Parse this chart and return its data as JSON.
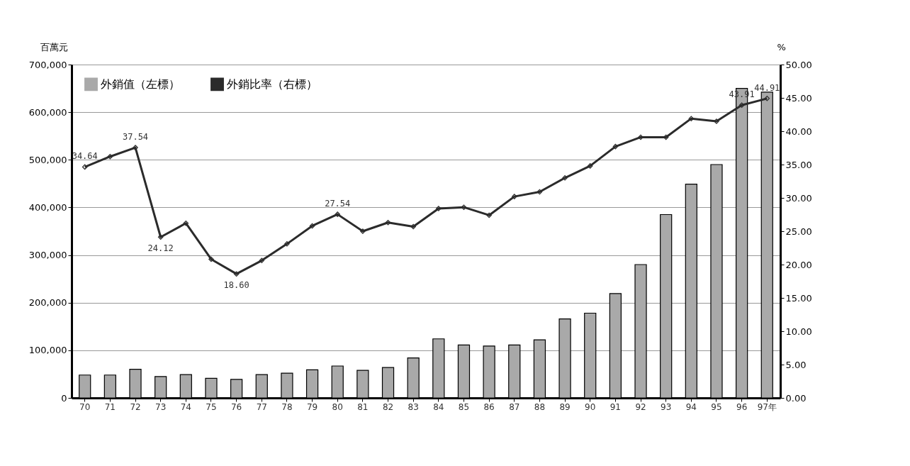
{
  "chart_data": {
    "type": "bar",
    "ylabel": "百萬元",
    "y2label": "%",
    "categories": [
      "70",
      "71",
      "72",
      "73",
      "74",
      "75",
      "76",
      "77",
      "78",
      "79",
      "80",
      "81",
      "82",
      "83",
      "84",
      "85",
      "86",
      "87",
      "88",
      "89",
      "90",
      "91",
      "92",
      "93",
      "94",
      "95",
      "96",
      "97年"
    ],
    "series": [
      {
        "name": "外銷值（左標）",
        "color": "#a9a9a9",
        "values": [
          48000,
          48000,
          60000,
          45000,
          49000,
          41000,
          39000,
          49000,
          52000,
          59000,
          67000,
          58000,
          64000,
          84000,
          124000,
          111000,
          109000,
          111000,
          122000,
          166000,
          178000,
          219000,
          280000,
          385000,
          449000,
          490000,
          650000,
          642000
        ]
      },
      {
        "name": "外銷比率（右標）",
        "type": "line",
        "axis": "y2",
        "color": "#2b2b2b",
        "marker": "diamond",
        "values": [
          34.64,
          36.2,
          37.54,
          24.12,
          26.2,
          20.8,
          18.6,
          20.6,
          23.1,
          25.8,
          27.54,
          25.0,
          26.3,
          25.7,
          28.4,
          28.6,
          27.4,
          30.2,
          30.9,
          33.0,
          34.8,
          37.7,
          39.1,
          39.1,
          41.9,
          41.5,
          43.91,
          44.91
        ],
        "value_labels": [
          "34.64",
          null,
          "37.54",
          "24.12",
          null,
          null,
          "18.60",
          null,
          null,
          null,
          "27.54",
          null,
          null,
          null,
          null,
          null,
          null,
          null,
          null,
          null,
          null,
          null,
          null,
          null,
          null,
          null,
          "43.91",
          "44.91"
        ]
      }
    ],
    "ylim": [
      0,
      700000
    ],
    "yticks": [
      0,
      {
        "value": 100000,
        "label": "100,000"
      },
      {
        "value": 200000,
        "label": "200,000"
      },
      {
        "value": 300000,
        "label": "300,000"
      },
      {
        "value": 400000,
        "label": "400,000"
      },
      {
        "value": 500000,
        "label": "500,000"
      },
      {
        "value": 600000,
        "label": "600,000"
      },
      {
        "value": 700000,
        "label": "700,000"
      }
    ],
    "y2lim": [
      0,
      50
    ],
    "y2ticks": [
      {
        "value": 0,
        "label": "0.00"
      },
      {
        "value": 5,
        "label": "5.00"
      },
      {
        "value": 10,
        "label": "10.00"
      },
      {
        "value": 15,
        "label": "15.00"
      },
      {
        "value": 20,
        "label": "20.00"
      },
      {
        "value": 25,
        "label": "25.00"
      },
      {
        "value": 30,
        "label": "30.00"
      },
      {
        "value": 35,
        "label": "35.00"
      },
      {
        "value": 40,
        "label": "40.00"
      },
      {
        "value": 45,
        "label": "45.00"
      },
      {
        "value": 50,
        "label": "50.00"
      }
    ],
    "grid": "y",
    "legend": "top left"
  }
}
